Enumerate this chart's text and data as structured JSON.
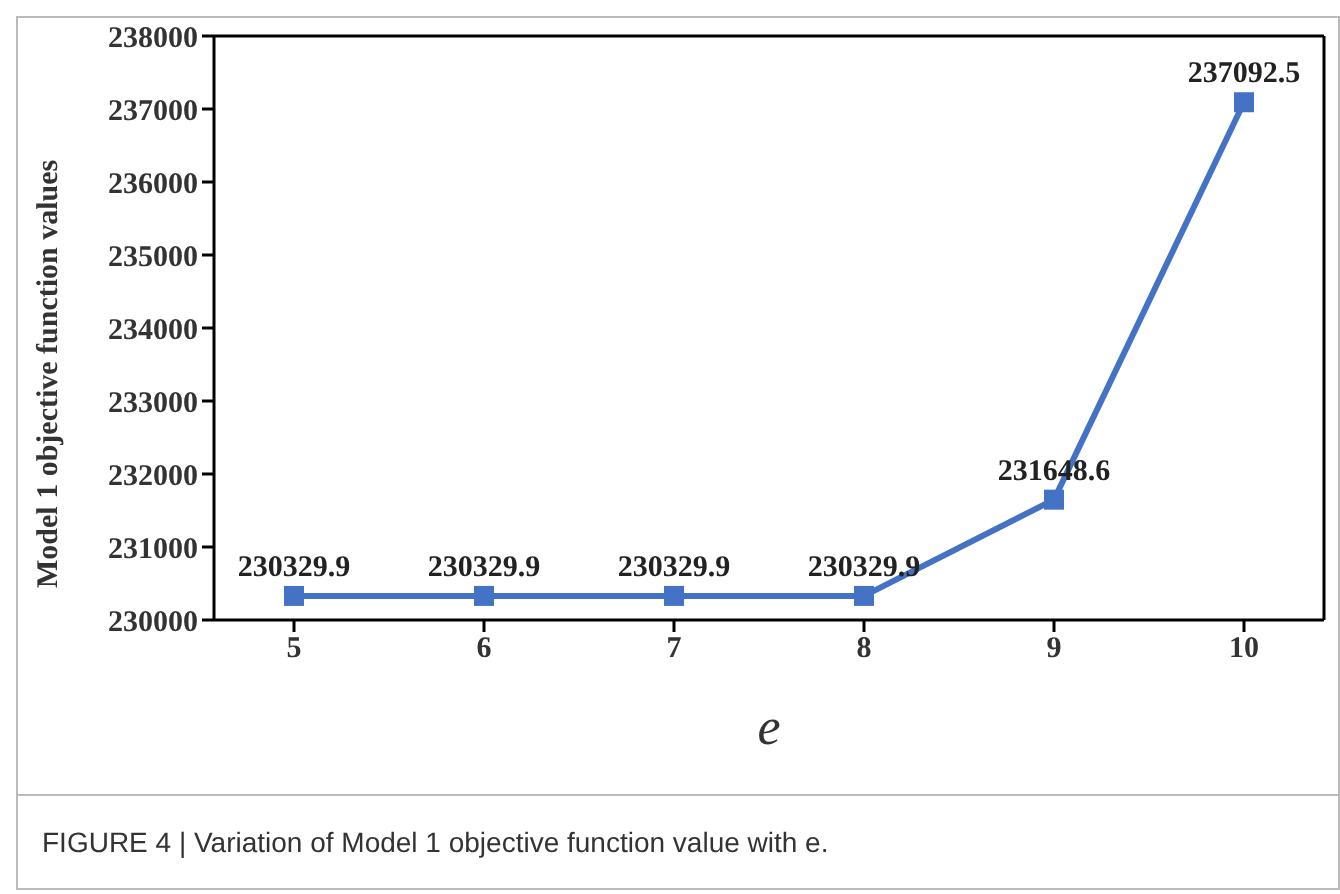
{
  "chart_data": {
    "type": "line",
    "xlabel": "e",
    "ylabel": "Model 1 objective function values",
    "categories": [
      "5",
      "6",
      "7",
      "8",
      "9",
      "10"
    ],
    "series": [
      {
        "color": "#4472c4",
        "values": [
          230329.9,
          230329.9,
          230329.9,
          230329.9,
          231648.6,
          237092.5
        ]
      }
    ],
    "ylim": [
      230000,
      238000
    ],
    "yticks": [
      230000,
      231000,
      232000,
      233000,
      234000,
      235000,
      236000,
      237000,
      238000
    ],
    "data_labels": true,
    "marker": "square",
    "line_style": "solid",
    "grid": false,
    "annotations": [
      "FIGURE 4 | Variation of Model 1 objective function value with e."
    ]
  }
}
